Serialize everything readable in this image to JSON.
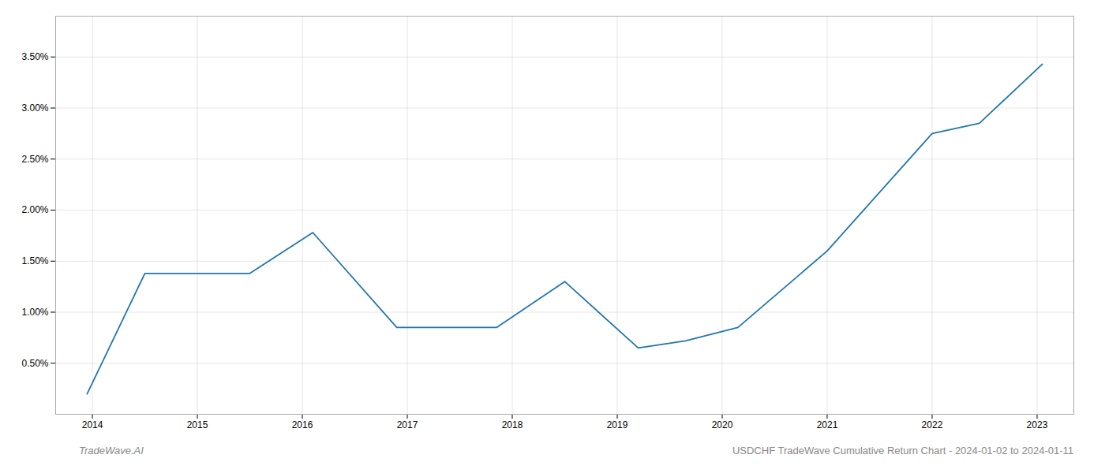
{
  "chart_data": {
    "type": "line",
    "x": [
      2013.95,
      2014.5,
      2015.5,
      2016.1,
      2016.9,
      2017.85,
      2018.5,
      2019.2,
      2019.65,
      2020.15,
      2021.0,
      2022.0,
      2022.45,
      2023.05
    ],
    "values": [
      0.002,
      0.0138,
      0.0138,
      0.0178,
      0.0085,
      0.0085,
      0.013,
      0.0065,
      0.0072,
      0.0085,
      0.016,
      0.0275,
      0.0285,
      0.0343
    ],
    "color": "#2176ae",
    "xlim": [
      2013.65,
      2023.35
    ],
    "ylim": [
      0.0,
      0.039
    ],
    "xticks": [
      2014,
      2015,
      2016,
      2017,
      2018,
      2019,
      2020,
      2021,
      2022,
      2023
    ],
    "yticks": [
      {
        "value": 0.005,
        "label": "0.50%"
      },
      {
        "value": 0.01,
        "label": "1.00%"
      },
      {
        "value": 0.015,
        "label": "1.50%"
      },
      {
        "value": 0.02,
        "label": "2.00%"
      },
      {
        "value": 0.025,
        "label": "2.50%"
      },
      {
        "value": 0.03,
        "label": "3.00%"
      },
      {
        "value": 0.035,
        "label": "3.50%"
      }
    ],
    "grid": true,
    "annotations": [
      "TradeWave.AI",
      "USDCHF TradeWave Cumulative Return Chart - 2024-01-02 to 2024-01-11"
    ]
  }
}
